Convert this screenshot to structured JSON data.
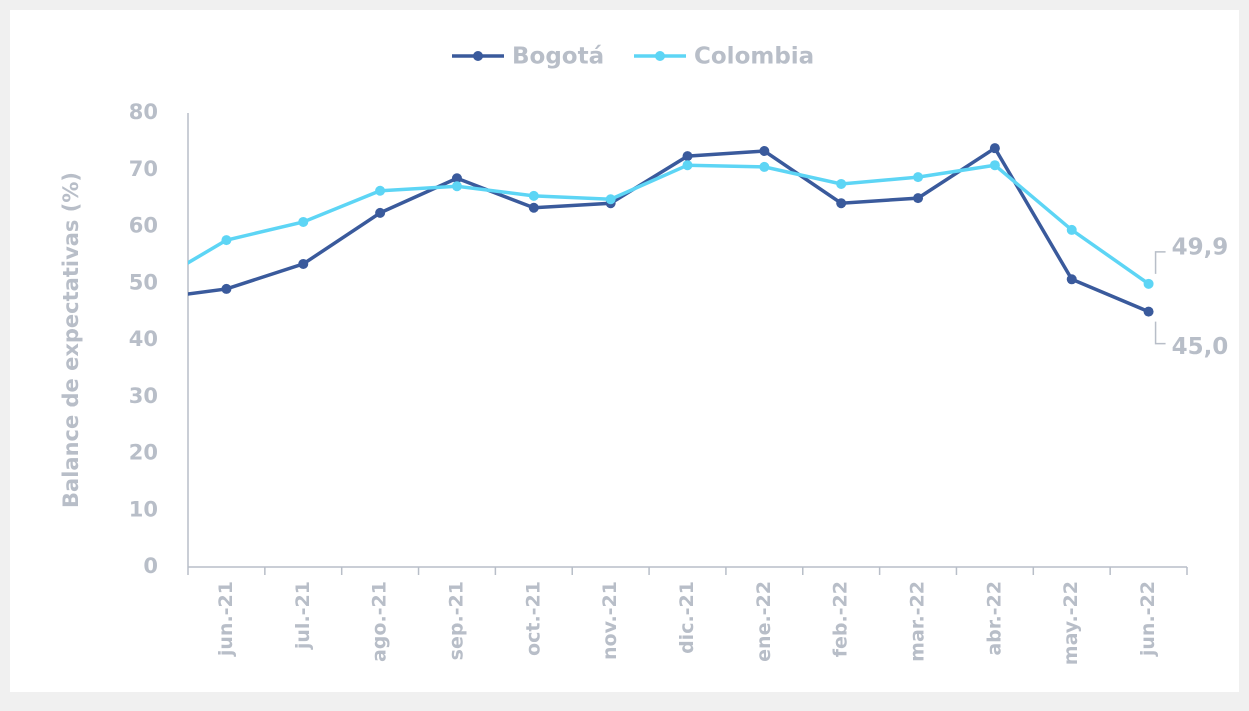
{
  "chart_data": {
    "type": "line",
    "categories": [
      null,
      "jun.-21",
      "jul.-21",
      "ago.-21",
      "sep.-21",
      "oct.-21",
      "nov.-21",
      "dic.-21",
      "ene.-22",
      "feb.-22",
      "mar.-22",
      "abr.-22",
      "may.-22",
      "jun.-22"
    ],
    "series": [
      {
        "name": "Bogotá",
        "color": "#3a5a9c",
        "values": [
          47.2,
          49.0,
          53.4,
          62.4,
          68.5,
          63.3,
          64.1,
          72.4,
          73.3,
          64.1,
          65.0,
          73.8,
          50.7,
          45.0
        ],
        "value_labels": [
          null,
          null,
          null,
          null,
          null,
          null,
          null,
          null,
          null,
          null,
          null,
          null,
          null,
          "45,0"
        ]
      },
      {
        "name": "Colombia",
        "color": "#5dd5f5",
        "values": [
          49.6,
          57.6,
          60.8,
          66.3,
          67.1,
          65.4,
          64.8,
          70.8,
          70.5,
          67.5,
          68.7,
          70.8,
          59.4,
          49.9
        ],
        "value_labels": [
          null,
          null,
          null,
          null,
          null,
          null,
          null,
          null,
          null,
          null,
          null,
          null,
          null,
          "49,9"
        ]
      }
    ],
    "y_label": "Balance de expectativas (%)",
    "ylim": [
      0,
      80
    ],
    "yticks": [
      0,
      10,
      20,
      30,
      40,
      50,
      60,
      70,
      80
    ],
    "grid": false,
    "legend": "top"
  }
}
